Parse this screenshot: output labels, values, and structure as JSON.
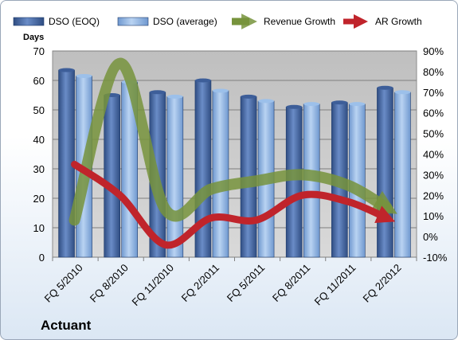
{
  "company": "Actuant",
  "chart_data": {
    "type": "bar",
    "categories": [
      "FQ 5/2010",
      "FQ 8/2010",
      "FQ 11/2010",
      "FQ 2/2011",
      "FQ 5/2011",
      "FQ 8/2011",
      "FQ 11/2011",
      "FQ 2/2012"
    ],
    "series": [
      {
        "name": "DSO (EOQ)",
        "type": "bar",
        "axis": "left",
        "values": [
          63.5,
          55,
          56,
          60,
          54.5,
          51,
          52.5,
          57.5
        ],
        "color": "#4a6aa5"
      },
      {
        "name": "DSO (average)",
        "type": "bar",
        "axis": "left",
        "values": [
          61.5,
          59.5,
          54.5,
          56.5,
          53,
          52,
          52,
          56
        ],
        "color": "#8eb4e3"
      },
      {
        "name": "Revenue Growth",
        "type": "line",
        "axis": "right",
        "unit": "%",
        "values": [
          8,
          84,
          13,
          23,
          27,
          30,
          25,
          14
        ],
        "color": "#77933c"
      },
      {
        "name": "AR Growth",
        "type": "line",
        "axis": "right",
        "unit": "%",
        "values": [
          35,
          20,
          -4,
          9,
          8,
          20,
          17,
          9
        ],
        "color": "#c0242b"
      }
    ],
    "ylabel": "Days",
    "ylim": [
      0,
      70
    ],
    "yticks": [
      0,
      10,
      20,
      30,
      40,
      50,
      60,
      70
    ],
    "y2lim": [
      -10,
      90
    ],
    "y2ticks": [
      "-10%",
      "0%",
      "10%",
      "20%",
      "30%",
      "40%",
      "50%",
      "60%",
      "70%",
      "80%",
      "90%"
    ],
    "legend_position": "top",
    "grid": true
  }
}
